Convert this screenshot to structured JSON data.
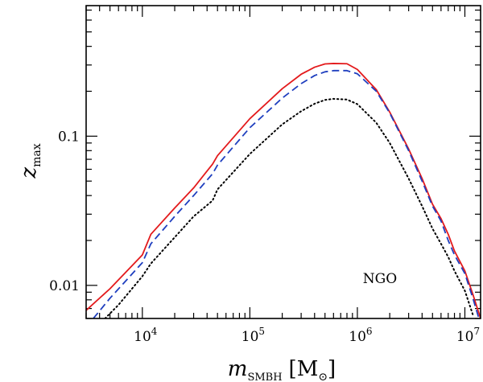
{
  "chart_data": {
    "type": "line",
    "title": "",
    "xscale": "log",
    "yscale": "log",
    "xlim": [
      3000,
      14000000
    ],
    "ylim": [
      0.006,
      0.75
    ],
    "x_ticks": [
      {
        "value": 10000,
        "base": "10",
        "exp": "4"
      },
      {
        "value": 100000,
        "base": "10",
        "exp": "5"
      },
      {
        "value": 1000000,
        "base": "10",
        "exp": "6"
      },
      {
        "value": 10000000,
        "base": "10",
        "exp": "7"
      }
    ],
    "y_ticks": [
      {
        "value": 0.01,
        "label": "0.01"
      },
      {
        "value": 0.1,
        "label": "0.1"
      }
    ],
    "xlabel": {
      "symbol": "m",
      "subscript": "SMBH",
      "unit_open": "[M",
      "unit_sub": "⊙",
      "unit_close": "]"
    },
    "ylabel": {
      "symbol": "z",
      "subscript": "max"
    },
    "annotation": "NGO",
    "series": [
      {
        "name": "solid",
        "color": "#e31a1c",
        "dash": "solid",
        "x": [
          3000,
          5000,
          10000,
          12000,
          20000,
          30000,
          45000,
          50000,
          100000,
          200000,
          300000,
          400000,
          500000,
          600000,
          800000,
          1000000,
          1500000,
          2000000,
          3000000,
          4000000,
          5000000,
          6000000,
          7000000,
          8000000,
          10000000,
          12000000,
          14000000
        ],
        "values": [
          0.0068,
          0.0095,
          0.016,
          0.022,
          0.033,
          0.045,
          0.065,
          0.074,
          0.131,
          0.208,
          0.26,
          0.29,
          0.305,
          0.307,
          0.306,
          0.28,
          0.205,
          0.145,
          0.082,
          0.052,
          0.035,
          0.028,
          0.022,
          0.017,
          0.0125,
          0.0085,
          0.006
        ]
      },
      {
        "name": "dashed",
        "color": "#1f3fbf",
        "dash": "dashed",
        "x": [
          3500,
          5000,
          10000,
          12000,
          20000,
          30000,
          45000,
          50000,
          100000,
          200000,
          300000,
          400000,
          500000,
          600000,
          800000,
          1000000,
          1500000,
          2000000,
          3000000,
          4000000,
          5000000,
          6000000,
          7000000,
          8000000,
          10000000,
          12000000,
          13500000
        ],
        "values": [
          0.006,
          0.0082,
          0.0142,
          0.019,
          0.029,
          0.04,
          0.056,
          0.064,
          0.114,
          0.18,
          0.225,
          0.255,
          0.27,
          0.275,
          0.275,
          0.262,
          0.2,
          0.143,
          0.08,
          0.05,
          0.034,
          0.027,
          0.02,
          0.016,
          0.012,
          0.008,
          0.006
        ]
      },
      {
        "name": "dotted",
        "color": "#000000",
        "dash": "dotted",
        "x": [
          4500,
          6000,
          10000,
          12000,
          20000,
          30000,
          45000,
          50000,
          100000,
          200000,
          300000,
          400000,
          500000,
          600000,
          800000,
          1000000,
          1500000,
          2000000,
          3000000,
          4000000,
          5000000,
          6000000,
          7000000,
          8000000,
          10000000,
          12000000
        ],
        "values": [
          0.006,
          0.0074,
          0.0115,
          0.014,
          0.021,
          0.029,
          0.037,
          0.044,
          0.076,
          0.12,
          0.147,
          0.165,
          0.175,
          0.178,
          0.176,
          0.164,
          0.123,
          0.09,
          0.052,
          0.034,
          0.024,
          0.019,
          0.0155,
          0.0125,
          0.0092,
          0.0062
        ]
      }
    ]
  }
}
